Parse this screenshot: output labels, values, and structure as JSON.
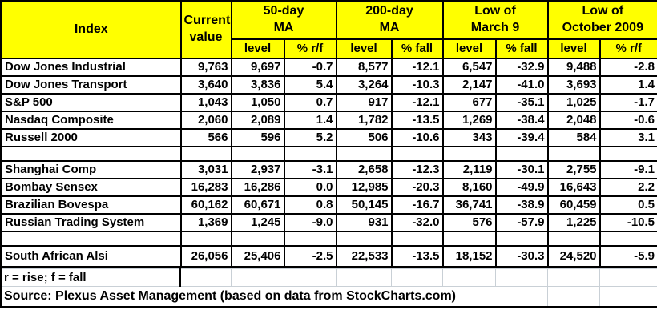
{
  "header": {
    "index_label": "Index",
    "current_line1": "Current",
    "current_line2": "value",
    "groups": [
      {
        "line1": "50-day",
        "line2": "MA",
        "sub_level": "level",
        "sub_pct": "% r/f"
      },
      {
        "line1": "200-day",
        "line2": "MA",
        "sub_level": "level",
        "sub_pct": "% fall"
      },
      {
        "line1": "Low of",
        "line2": "March 9",
        "sub_level": "level",
        "sub_pct": "% fall"
      },
      {
        "line1": "Low of",
        "line2": "October 2009",
        "sub_level": "level",
        "sub_pct": "% r/f"
      }
    ]
  },
  "footnote": "r = rise; f = fall",
  "source": "Source: Plexus Asset Management (based on data from StockCharts.com)",
  "colors": {
    "header_bg": "#FFFF00",
    "border": "#000000",
    "gridline": "#C9D0D6",
    "text": "#000000"
  },
  "chart_data": {
    "type": "table",
    "columns": [
      "Index",
      "Current value",
      "50-day MA level",
      "50-day MA % r/f",
      "200-day MA level",
      "200-day MA % fall",
      "Low of March 9 level",
      "Low of March 9 % fall",
      "Low of October 2009 level",
      "Low of October 2009 % r/f"
    ],
    "rows": [
      {
        "index": "Dow Jones Industrial",
        "values": [
          "9,763",
          "9,697",
          "-0.7",
          "8,577",
          "-12.1",
          "6,547",
          "-32.9",
          "9,488",
          "-2.8"
        ]
      },
      {
        "index": "Dow Jones Transport",
        "values": [
          "3,640",
          "3,836",
          "5.4",
          "3,264",
          "-10.3",
          "2,147",
          "-41.0",
          "3,693",
          "1.4"
        ]
      },
      {
        "index": "S&P 500",
        "values": [
          "1,043",
          "1,050",
          "0.7",
          "917",
          "-12.1",
          "677",
          "-35.1",
          "1,025",
          "-1.7"
        ]
      },
      {
        "index": "Nasdaq Composite",
        "values": [
          "2,060",
          "2,089",
          "1.4",
          "1,782",
          "-13.5",
          "1,269",
          "-38.4",
          "2,048",
          "-0.6"
        ]
      },
      {
        "index": "Russell 2000",
        "values": [
          "566",
          "596",
          "5.2",
          "506",
          "-10.6",
          "343",
          "-39.4",
          "584",
          "3.1"
        ]
      },
      {
        "blank": true
      },
      {
        "index": "Shanghai Comp",
        "values": [
          "3,031",
          "2,937",
          "-3.1",
          "2,658",
          "-12.3",
          "2,119",
          "-30.1",
          "2,755",
          "-9.1"
        ]
      },
      {
        "index": "Bombay Sensex",
        "values": [
          "16,283",
          "16,286",
          "0.0",
          "12,985",
          "-20.3",
          "8,160",
          "-49.9",
          "16,643",
          "2.2"
        ]
      },
      {
        "index": "Brazilian Bovespa",
        "values": [
          "60,162",
          "60,671",
          "0.8",
          "50,145",
          "-16.7",
          "36,741",
          "-38.9",
          "60,459",
          "0.5"
        ]
      },
      {
        "index": "Russian Trading System",
        "values": [
          "1,369",
          "1,245",
          "-9.0",
          "931",
          "-32.0",
          "576",
          "-57.9",
          "1,225",
          "-10.5"
        ]
      },
      {
        "blank": true
      },
      {
        "index": "South African Alsi",
        "tall": true,
        "values": [
          "26,056",
          "25,406",
          "-2.5",
          "22,533",
          "-13.5",
          "18,152",
          "-30.3",
          "24,520",
          "-5.9"
        ]
      }
    ]
  }
}
